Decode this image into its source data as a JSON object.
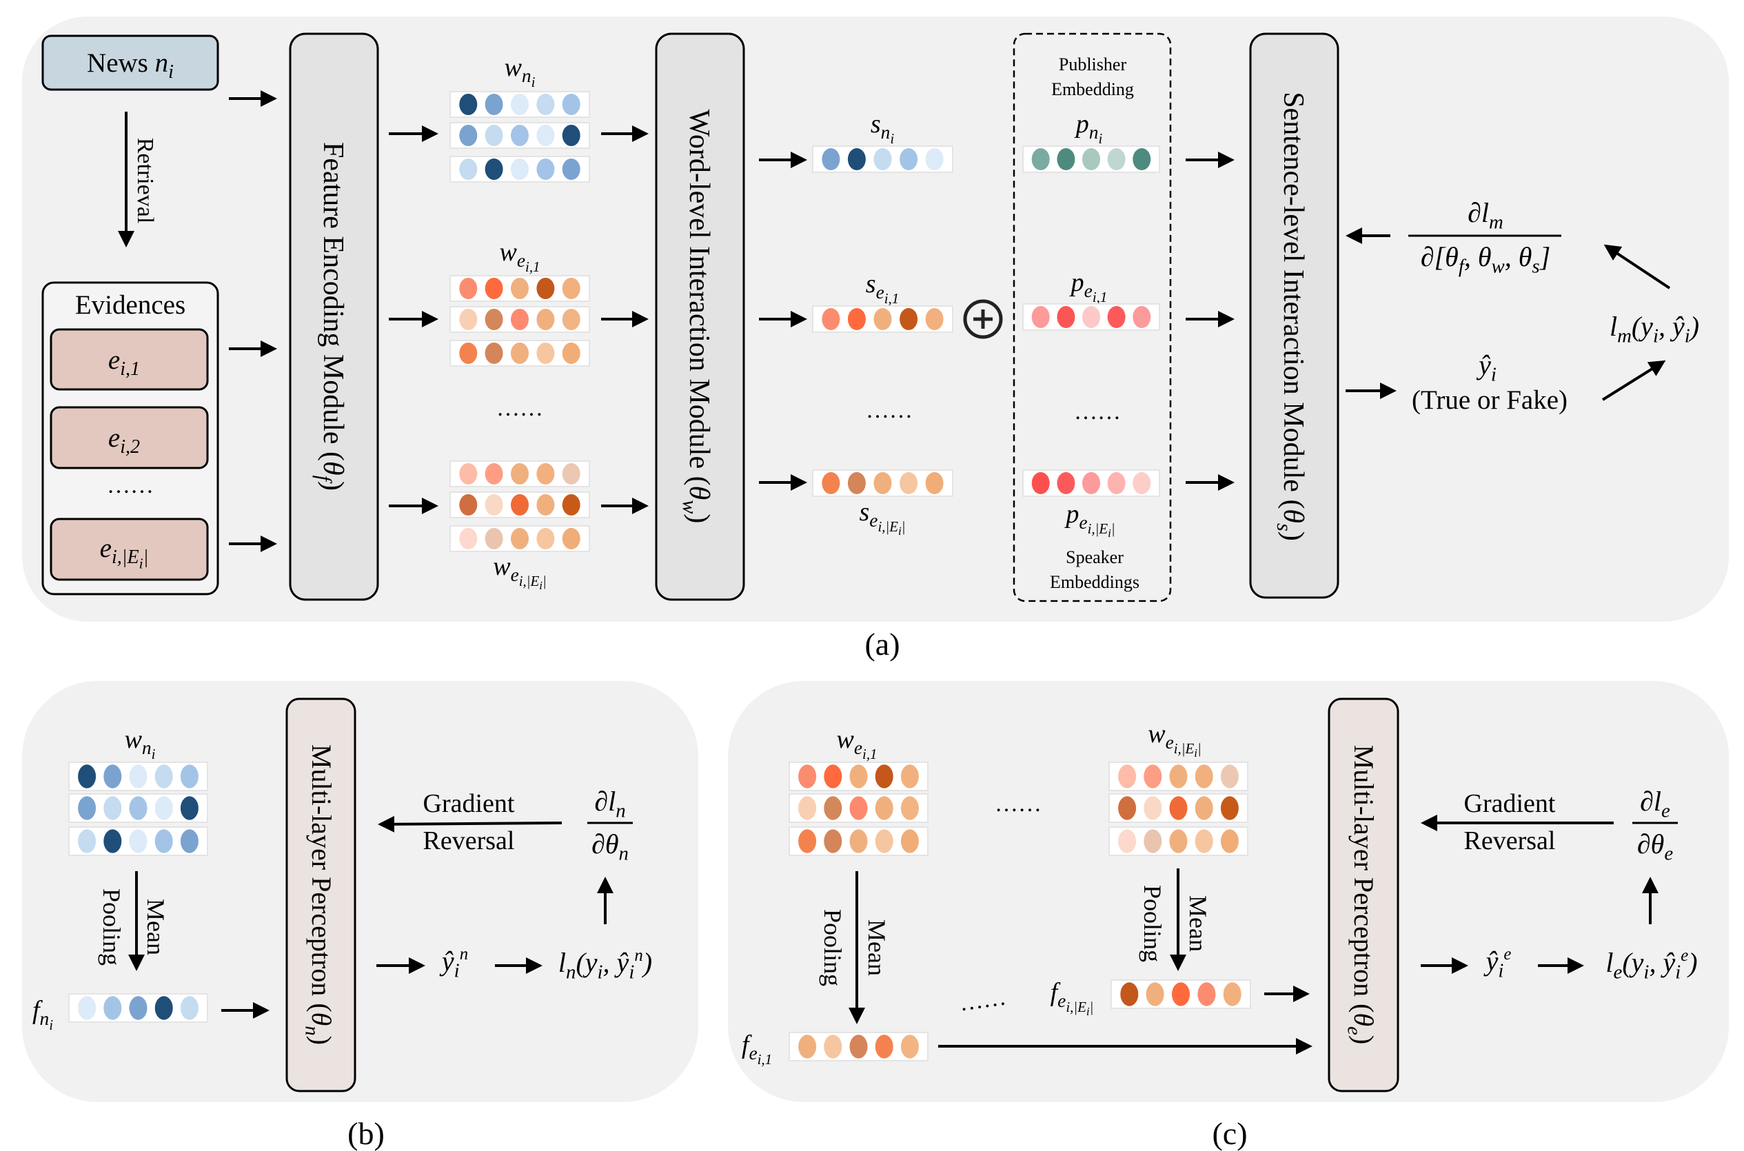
{
  "panel_a": {
    "news_label": [
      [
        "News ",
        0,
        "r"
      ],
      [
        "n",
        0
      ],
      [
        "i",
        1
      ]
    ],
    "retrieval": "Retrieval",
    "evidences_title": "Evidences",
    "evidence_items": [
      [
        [
          "e",
          0
        ],
        [
          "i,1",
          1
        ]
      ],
      [
        [
          "e",
          0
        ],
        [
          "i,2",
          1
        ]
      ],
      [
        [
          "e",
          0
        ],
        [
          "i,|E",
          1
        ],
        [
          "i",
          2
        ],
        [
          "|",
          1
        ]
      ]
    ],
    "ellipsis": "……",
    "feature_module": [
      [
        "Feature Encoding Module (",
        0,
        "r"
      ],
      [
        "θ",
        0,
        "i"
      ],
      [
        "f",
        1,
        "i"
      ],
      [
        ")",
        0,
        "r"
      ]
    ],
    "word_module": [
      [
        "Word-level Interaction Module (",
        0,
        "r"
      ],
      [
        "θ",
        0,
        "i"
      ],
      [
        "w",
        1,
        "i"
      ],
      [
        ")",
        0,
        "r"
      ]
    ],
    "sentence_module": [
      [
        "Sentence-level Interaction Module (",
        0,
        "r"
      ],
      [
        "θ",
        0,
        "i"
      ],
      [
        "s",
        1,
        "i"
      ],
      [
        ")",
        0,
        "r"
      ]
    ],
    "w_ni": {
      "label": [
        [
          "w",
          0
        ],
        [
          "n",
          1
        ],
        [
          "i",
          2
        ]
      ],
      "rows": [
        [
          "#1f4e79",
          "#7ba3d0",
          "#ddeaf7",
          "#c5dbef",
          "#a3c4e6"
        ],
        [
          "#7ba3d0",
          "#c5dbef",
          "#a3c4e6",
          "#ddeaf7",
          "#1f4e79"
        ],
        [
          "#c5dbef",
          "#1f4e79",
          "#ddeaf7",
          "#a3c4e6",
          "#7ba3d0"
        ]
      ]
    },
    "w_ei1": {
      "label": [
        [
          "w",
          0
        ],
        [
          "e",
          1
        ],
        [
          "i,1",
          2
        ]
      ],
      "rows": [
        [
          "#fb8c70",
          "#fe6a3d",
          "#f0b07e",
          "#c4571a",
          "#f2b07e"
        ],
        [
          "#f9cfb2",
          "#d4875a",
          "#fd8a70",
          "#f0b07e",
          "#f2b482"
        ],
        [
          "#f4824f",
          "#d4855a",
          "#f0b07e",
          "#f6c6a0",
          "#f0ad78"
        ]
      ]
    },
    "w_eE": {
      "label": [
        [
          "w",
          0
        ],
        [
          "e",
          1
        ],
        [
          "i,|E",
          2
        ],
        [
          "i",
          3
        ],
        [
          "|",
          2
        ]
      ],
      "rows": [
        [
          "#fdbca8",
          "#fd9e84",
          "#f0b07e",
          "#f2b07e",
          "#ecc8b3"
        ],
        [
          "#cf6f3f",
          "#f9d8c4",
          "#f06a37",
          "#f0b07e",
          "#c85a18"
        ],
        [
          "#fcd9cc",
          "#e9c5b0",
          "#f0b07e",
          "#f6c6a0",
          "#f0ad78"
        ]
      ]
    },
    "s_ni": {
      "label": [
        [
          "s",
          0
        ],
        [
          "n",
          1
        ],
        [
          "i",
          2
        ]
      ],
      "colors": [
        "#7ba3d0",
        "#1f4e79",
        "#c5dbef",
        "#a3c4e6",
        "#ddeaf7"
      ]
    },
    "s_ei1": {
      "label": [
        [
          "s",
          0
        ],
        [
          "e",
          1
        ],
        [
          "i,1",
          2
        ]
      ],
      "colors": [
        "#fb8c70",
        "#fe6a3d",
        "#f0b07e",
        "#c4571a",
        "#f2b07e"
      ]
    },
    "s_eE": {
      "label": [
        [
          "s",
          0
        ],
        [
          "e",
          1
        ],
        [
          "i,|E",
          2
        ],
        [
          "i",
          3
        ],
        [
          "|",
          2
        ]
      ],
      "colors": [
        "#f4824f",
        "#d4855a",
        "#f0b07e",
        "#f6c6a0",
        "#f0ad78"
      ]
    },
    "publisher_title": [
      "Publisher",
      "Embedding"
    ],
    "speaker_title": [
      "Speaker",
      "Embeddings"
    ],
    "p_ni": {
      "label": [
        [
          "p",
          0
        ],
        [
          "n",
          1
        ],
        [
          "i",
          2
        ]
      ],
      "colors": [
        "#7aaaa0",
        "#4e8a80",
        "#a8c8c0",
        "#c0d6d2",
        "#4e8a80"
      ]
    },
    "p_ei1": {
      "label": [
        [
          "p",
          0
        ],
        [
          "e",
          1
        ],
        [
          "i,1",
          2
        ]
      ],
      "colors": [
        "#fd9a9a",
        "#fc5555",
        "#fdc8c8",
        "#fc5a5a",
        "#fd9a9a"
      ]
    },
    "p_eE": {
      "label": [
        [
          "p",
          0
        ],
        [
          "e",
          1
        ],
        [
          "i,|E",
          2
        ],
        [
          "i",
          3
        ],
        [
          "|",
          2
        ]
      ],
      "colors": [
        "#fc5050",
        "#fc5a5a",
        "#fd9a9a",
        "#fdb4b0",
        "#fdcdc8"
      ]
    },
    "grad_numerator": [
      [
        "∂l",
        0
      ],
      [
        "m",
        1
      ]
    ],
    "grad_denominator": [
      [
        "∂[θ",
        0
      ],
      [
        "f",
        1
      ],
      [
        ", θ",
        0
      ],
      [
        "w",
        1
      ],
      [
        ", θ",
        0
      ],
      [
        "s",
        1
      ],
      [
        "]",
        0
      ]
    ],
    "prediction": [
      [
        "ŷ",
        0
      ],
      [
        "i",
        1
      ]
    ],
    "prediction_text": "(True or Fake)",
    "loss": [
      [
        "l",
        0
      ],
      [
        "m",
        1
      ],
      [
        "(y",
        0
      ],
      [
        "i",
        1
      ],
      [
        ", ŷ",
        0
      ],
      [
        "i",
        1
      ],
      [
        ")",
        0
      ]
    ],
    "caption": "(a)"
  },
  "panel_b": {
    "w_ni": {
      "label": [
        [
          "w",
          0
        ],
        [
          "n",
          1
        ],
        [
          "i",
          2
        ]
      ],
      "rows": [
        [
          "#1f4e79",
          "#7ba3d0",
          "#ddeaf7",
          "#c5dbef",
          "#a3c4e6"
        ],
        [
          "#7ba3d0",
          "#c5dbef",
          "#a3c4e6",
          "#ddeaf7",
          "#1f4e79"
        ],
        [
          "#c5dbef",
          "#1f4e79",
          "#ddeaf7",
          "#a3c4e6",
          "#7ba3d0"
        ]
      ]
    },
    "pooling_mean": "Mean",
    "pooling_pooling": "Pooling",
    "f_ni": {
      "label": [
        [
          "f",
          0
        ],
        [
          "n",
          1
        ],
        [
          "i",
          2
        ]
      ],
      "colors": [
        "#ddeaf7",
        "#a3c4e6",
        "#7ba3d0",
        "#1f4e79",
        "#c5dbef"
      ]
    },
    "mlp": [
      [
        "Multi-layer Perceptron (",
        0,
        "r"
      ],
      [
        "θ",
        0,
        "i"
      ],
      [
        "n",
        1,
        "i"
      ],
      [
        ")",
        0,
        "r"
      ]
    ],
    "gradient": "Gradient",
    "reversal": "Reversal",
    "grad_numerator": [
      [
        "∂l",
        0
      ],
      [
        "n",
        1
      ]
    ],
    "grad_denominator": [
      [
        "∂θ",
        0
      ],
      [
        "n",
        1
      ]
    ],
    "prediction": [
      [
        "ŷ",
        0
      ],
      [
        "i",
        1
      ],
      [
        "n",
        -1
      ]
    ],
    "loss": [
      [
        "l",
        0
      ],
      [
        "n",
        1
      ],
      [
        "(y",
        0
      ],
      [
        "i",
        1
      ],
      [
        ", ŷ",
        0
      ],
      [
        "i",
        1
      ],
      [
        "n",
        -1
      ],
      [
        ")",
        0
      ]
    ],
    "caption": "(b)"
  },
  "panel_c": {
    "w_ei1": {
      "label": [
        [
          "w",
          0
        ],
        [
          "e",
          1
        ],
        [
          "i,1",
          2
        ]
      ],
      "rows": [
        [
          "#fb8c70",
          "#fe6a3d",
          "#f0b07e",
          "#c4571a",
          "#f2b07e"
        ],
        [
          "#f9cfb2",
          "#d4875a",
          "#fd8a70",
          "#f0b07e",
          "#f2b482"
        ],
        [
          "#f4824f",
          "#d4855a",
          "#f0b07e",
          "#f6c6a0",
          "#f0ad78"
        ]
      ]
    },
    "w_eE": {
      "label": [
        [
          "w",
          0
        ],
        [
          "e",
          1
        ],
        [
          "i,|E",
          2
        ],
        [
          "i",
          3
        ],
        [
          "|",
          2
        ]
      ],
      "rows": [
        [
          "#fdbca8",
          "#fd9e84",
          "#f0b07e",
          "#f2b07e",
          "#ecc8b3"
        ],
        [
          "#cf6f3f",
          "#f9d8c4",
          "#f06a37",
          "#f0b07e",
          "#c85a18"
        ],
        [
          "#fcd9cc",
          "#e9c5b0",
          "#f0b07e",
          "#f6c6a0",
          "#f0ad78"
        ]
      ]
    },
    "ellipsis": "……",
    "pooling_mean": "Mean",
    "pooling_pooling": "Pooling",
    "f_ei1": {
      "label": [
        [
          "f",
          0
        ],
        [
          "e",
          1
        ],
        [
          "i,1",
          2
        ]
      ],
      "colors": [
        "#f0b07e",
        "#f6c6a0",
        "#d4855a",
        "#f4824f",
        "#f2b482"
      ]
    },
    "f_eE": {
      "label": [
        [
          "f",
          0
        ],
        [
          "e",
          1
        ],
        [
          "i,|E",
          2
        ],
        [
          "i",
          3
        ],
        [
          "|",
          2
        ]
      ],
      "colors": [
        "#c4571a",
        "#f0b07e",
        "#fe6a3d",
        "#fb8c70",
        "#f2b07e"
      ]
    },
    "mlp": [
      [
        "Multi-layer Perceptron (",
        0,
        "r"
      ],
      [
        "θ",
        0,
        "i"
      ],
      [
        "e",
        1,
        "i"
      ],
      [
        ")",
        0,
        "r"
      ]
    ],
    "gradient": "Gradient",
    "reversal": "Reversal",
    "grad_numerator": [
      [
        "∂l",
        0
      ],
      [
        "e",
        1
      ]
    ],
    "grad_denominator": [
      [
        "∂θ",
        0
      ],
      [
        "e",
        1
      ]
    ],
    "prediction": [
      [
        "ŷ",
        0
      ],
      [
        "i",
        1
      ],
      [
        "e",
        -1
      ]
    ],
    "loss": [
      [
        "l",
        0
      ],
      [
        "e",
        1
      ],
      [
        "(y",
        0
      ],
      [
        "i",
        1
      ],
      [
        ", ŷ",
        0
      ],
      [
        "i",
        1
      ],
      [
        "e",
        -1
      ],
      [
        ")",
        0
      ]
    ],
    "caption": "(c)"
  }
}
